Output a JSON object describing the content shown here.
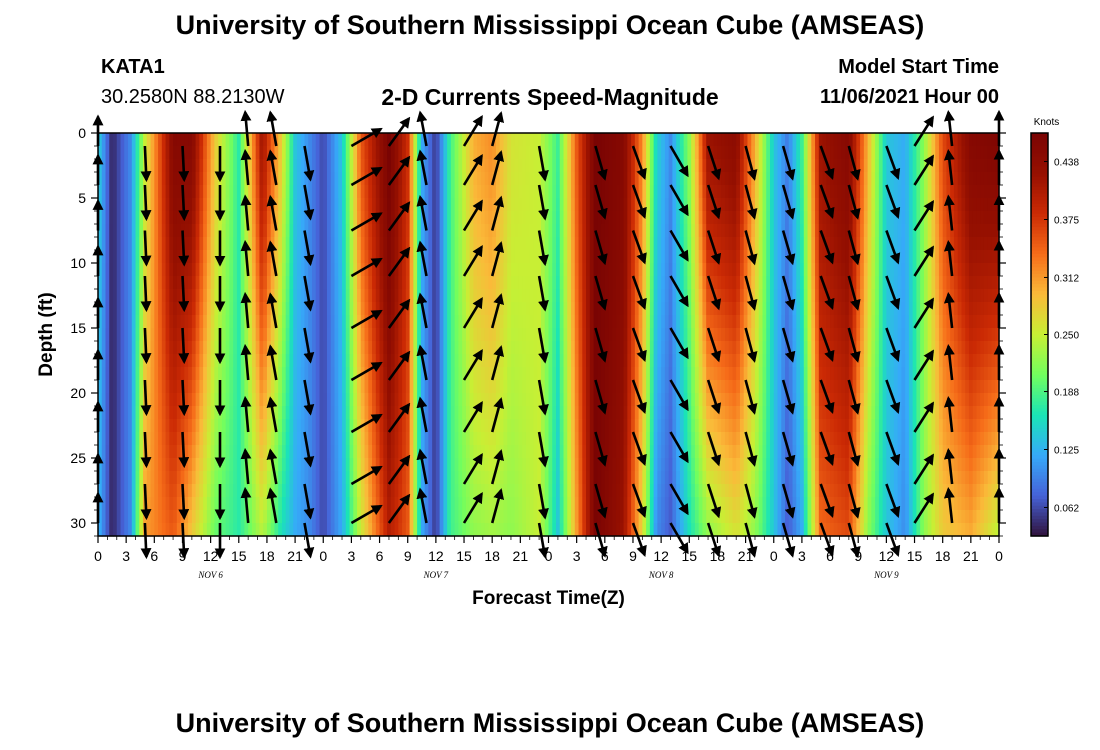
{
  "header": {
    "title": "University of Southern Mississippi Ocean Cube (AMSEAS)",
    "station_id": "KATA1",
    "station_coords": "30.2580N  88.2130W",
    "plot_title": "2-D Currents Speed-Magnitude",
    "model_start_label": "Model Start Time",
    "model_start_value": "11/06/2021 Hour 00"
  },
  "footer": {
    "title": "University of Southern Mississippi Ocean Cube (AMSEAS)"
  },
  "chart_data": {
    "type": "heatmap",
    "title": "2-D Currents Speed-Magnitude",
    "xlabel": "Forecast Time(Z)",
    "ylabel": "Depth (ft)",
    "x_range_hours": [
      0,
      96
    ],
    "y_range_ft": [
      0,
      31
    ],
    "x_tick_labels": [
      "0",
      "3",
      "6",
      "9",
      "12",
      "15",
      "18",
      "21",
      "0",
      "3",
      "6",
      "9",
      "12",
      "15",
      "18",
      "21",
      "0",
      "3",
      "6",
      "9",
      "12",
      "15",
      "18",
      "21",
      "0",
      "3",
      "6",
      "9",
      "12",
      "15",
      "18",
      "21",
      "0"
    ],
    "date_labels": [
      "NOV 6",
      "NOV 7",
      "NOV 8",
      "NOV 9"
    ],
    "y_ticks": [
      0,
      5,
      10,
      15,
      20,
      25,
      30
    ],
    "colorbar": {
      "label": "Knots",
      "ticks": [
        "0.062",
        "0.125",
        "0.188",
        "0.250",
        "0.312",
        "0.375",
        "0.438"
      ],
      "range": [
        0.031,
        0.469
      ]
    },
    "speed_by_hour": [
      {
        "hour": 0,
        "surface": 0.15,
        "bottom": 0.13
      },
      {
        "hour": 1.5,
        "surface": 0.04,
        "bottom": 0.04
      },
      {
        "hour": 3.5,
        "surface": 0.1,
        "bottom": 0.1
      },
      {
        "hour": 5,
        "surface": 0.25,
        "bottom": 0.31
      },
      {
        "hour": 8,
        "surface": 0.45,
        "bottom": 0.35
      },
      {
        "hour": 10,
        "surface": 0.45,
        "bottom": 0.28
      },
      {
        "hour": 12.5,
        "surface": 0.28,
        "bottom": 0.2
      },
      {
        "hour": 15,
        "surface": 0.17,
        "bottom": 0.17
      },
      {
        "hour": 17.5,
        "surface": 0.42,
        "bottom": 0.24
      },
      {
        "hour": 19.5,
        "surface": 0.28,
        "bottom": 0.16
      },
      {
        "hour": 21,
        "surface": 0.14,
        "bottom": 0.12
      },
      {
        "hour": 22.5,
        "surface": 0.1,
        "bottom": 0.1
      },
      {
        "hour": 24,
        "surface": 0.06,
        "bottom": 0.06
      },
      {
        "hour": 26,
        "surface": 0.14,
        "bottom": 0.12
      },
      {
        "hour": 28,
        "surface": 0.35,
        "bottom": 0.25
      },
      {
        "hour": 31,
        "surface": 0.47,
        "bottom": 0.4
      },
      {
        "hour": 33,
        "surface": 0.38,
        "bottom": 0.35
      },
      {
        "hour": 34.5,
        "surface": 0.12,
        "bottom": 0.12
      },
      {
        "hour": 36,
        "surface": 0.05,
        "bottom": 0.05
      },
      {
        "hour": 37.5,
        "surface": 0.18,
        "bottom": 0.18
      },
      {
        "hour": 40,
        "surface": 0.3,
        "bottom": 0.22
      },
      {
        "hour": 42,
        "surface": 0.32,
        "bottom": 0.23
      },
      {
        "hour": 44,
        "surface": 0.26,
        "bottom": 0.22
      },
      {
        "hour": 47,
        "surface": 0.25,
        "bottom": 0.25
      },
      {
        "hour": 49,
        "surface": 0.18,
        "bottom": 0.14
      },
      {
        "hour": 51,
        "surface": 0.35,
        "bottom": 0.31
      },
      {
        "hour": 53,
        "surface": 0.47,
        "bottom": 0.47
      },
      {
        "hour": 56,
        "surface": 0.45,
        "bottom": 0.42
      },
      {
        "hour": 58,
        "surface": 0.32,
        "bottom": 0.27
      },
      {
        "hour": 59.5,
        "surface": 0.15,
        "bottom": 0.1
      },
      {
        "hour": 61,
        "surface": 0.1,
        "bottom": 0.07
      },
      {
        "hour": 63,
        "surface": 0.22,
        "bottom": 0.16
      },
      {
        "hour": 65,
        "surface": 0.42,
        "bottom": 0.22
      },
      {
        "hour": 68,
        "surface": 0.44,
        "bottom": 0.26
      },
      {
        "hour": 70,
        "surface": 0.3,
        "bottom": 0.22
      },
      {
        "hour": 72,
        "surface": 0.14,
        "bottom": 0.14
      },
      {
        "hour": 73.5,
        "surface": 0.09,
        "bottom": 0.07
      },
      {
        "hour": 75,
        "surface": 0.18,
        "bottom": 0.12
      },
      {
        "hour": 77,
        "surface": 0.42,
        "bottom": 0.34
      },
      {
        "hour": 80,
        "surface": 0.45,
        "bottom": 0.36
      },
      {
        "hour": 82,
        "surface": 0.3,
        "bottom": 0.22
      },
      {
        "hour": 84,
        "surface": 0.14,
        "bottom": 0.14
      },
      {
        "hour": 86,
        "surface": 0.12,
        "bottom": 0.1
      },
      {
        "hour": 88,
        "surface": 0.22,
        "bottom": 0.22
      },
      {
        "hour": 90,
        "surface": 0.36,
        "bottom": 0.28
      },
      {
        "hour": 93,
        "surface": 0.45,
        "bottom": 0.3
      },
      {
        "hour": 96,
        "surface": 0.46,
        "bottom": 0.24
      }
    ],
    "vector_columns_hours": [
      0,
      5,
      9,
      13,
      16,
      19,
      22,
      27,
      31,
      35,
      39,
      42,
      47,
      53,
      57,
      61,
      65,
      69,
      73,
      77,
      80,
      84,
      87,
      91,
      96
    ],
    "vector_depths_ft": [
      1,
      4,
      7.5,
      11,
      15,
      19,
      23,
      27,
      30
    ],
    "vector_direction_deg": [
      {
        "hour": 0,
        "dir": -30
      },
      {
        "hour": 2,
        "dir": -45
      },
      {
        "hour": 4,
        "dir": 180
      },
      {
        "hour": 6,
        "dir": 175
      },
      {
        "hour": 13,
        "dir": 180
      },
      {
        "hour": 16,
        "dir": -5
      },
      {
        "hour": 19,
        "dir": -10
      },
      {
        "hour": 22,
        "dir": 170
      },
      {
        "hour": 26,
        "dir": 60
      },
      {
        "hour": 30,
        "dir": 60
      },
      {
        "hour": 33,
        "dir": -12
      },
      {
        "hour": 36,
        "dir": -10
      },
      {
        "hour": 40,
        "dir": 45
      },
      {
        "hour": 43,
        "dir": 0
      },
      {
        "hour": 47,
        "dir": 170
      },
      {
        "hour": 57,
        "dir": 160
      },
      {
        "hour": 61,
        "dir": 150
      },
      {
        "hour": 66,
        "dir": 165
      },
      {
        "hour": 72,
        "dir": 165
      },
      {
        "hour": 77,
        "dir": 160
      },
      {
        "hour": 80,
        "dir": 165
      },
      {
        "hour": 84,
        "dir": 160
      },
      {
        "hour": 88,
        "dir": -10
      },
      {
        "hour": 96,
        "dir": 0
      }
    ]
  }
}
